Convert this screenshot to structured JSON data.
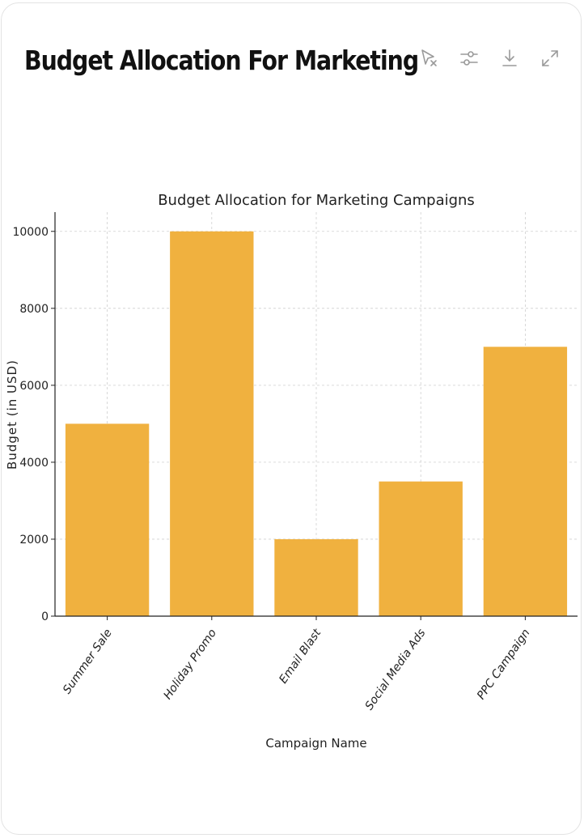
{
  "header": {
    "title": "Budget Allocation For Marketing Camp...",
    "tools": [
      {
        "name": "interactive-cursor-icon"
      },
      {
        "name": "sliders-icon"
      },
      {
        "name": "download-icon"
      },
      {
        "name": "expand-icon"
      }
    ]
  },
  "chart_data": {
    "type": "bar",
    "title": "Budget Allocation for Marketing Campaigns",
    "xlabel": "Campaign Name",
    "ylabel": "Budget (in USD)",
    "categories": [
      "Summer Sale",
      "Holiday Promo",
      "Email Blast",
      "Social Media Ads",
      "PPC Campaign"
    ],
    "values": [
      5000,
      10000,
      2000,
      3500,
      7000
    ],
    "ylim": [
      0,
      10500
    ],
    "yticks": [
      0,
      2000,
      4000,
      6000,
      8000,
      10000
    ],
    "grid": true,
    "bar_color": "#F0B13F",
    "legend": "none"
  }
}
